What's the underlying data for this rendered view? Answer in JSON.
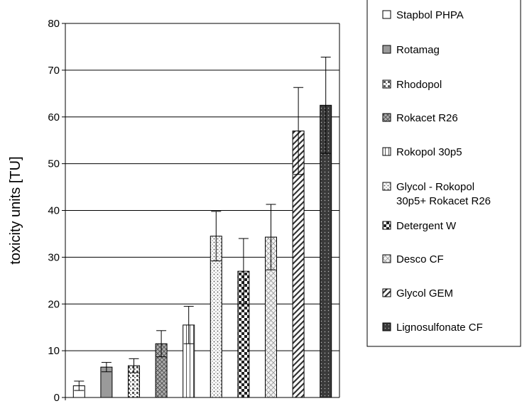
{
  "chart_data": {
    "type": "bar",
    "title": "",
    "xlabel": "",
    "ylabel": "toxicity units  [TU]",
    "ylim": [
      0,
      80
    ],
    "yticks": [
      0,
      10,
      20,
      30,
      40,
      50,
      60,
      70,
      80
    ],
    "grid": true,
    "legend_position": "right",
    "series": [
      {
        "name": "Stapbol PHPA",
        "value": 2.5,
        "error": 1.0,
        "pattern": "white"
      },
      {
        "name": "Rotamag",
        "value": 6.5,
        "error": 1.0,
        "pattern": "gray"
      },
      {
        "name": "Rhodopol",
        "value": 6.8,
        "error": 1.5,
        "pattern": "dotgrid"
      },
      {
        "name": "Rokacet R26",
        "value": 11.5,
        "error": 2.8,
        "pattern": "diagcross"
      },
      {
        "name": "Rokopol 30p5",
        "value": 15.5,
        "error": 4.0,
        "pattern": "vlines"
      },
      {
        "name": "Glycol - Rokopol 30p5+ Rokacet R26",
        "value": 34.5,
        "error": 5.3,
        "pattern": "dots"
      },
      {
        "name": "Detergent W",
        "value": 27.0,
        "error": 7.0,
        "pattern": "checker"
      },
      {
        "name": "Desco CF",
        "value": 34.3,
        "error": 7.0,
        "pattern": "lightcross"
      },
      {
        "name": "Glycol GEM",
        "value": 57.0,
        "error": 9.3,
        "pattern": "diagstripes"
      },
      {
        "name": "Lignosulfonate CF",
        "value": 62.5,
        "error": 10.3,
        "pattern": "darkdots"
      }
    ]
  }
}
